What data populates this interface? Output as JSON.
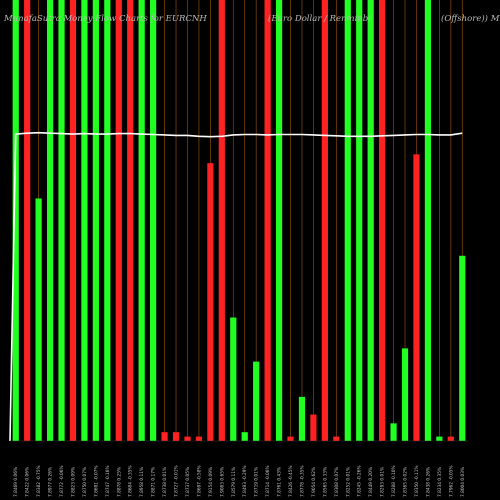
{
  "chart_data": {
    "type": "bar",
    "title_parts": [
      "MunafaSutra Money Flow Charts for EURCNH",
      "(Euro Dollar / Renminbi",
      "(Offshore)) MunafaSutra.com"
    ],
    "colors": {
      "background": "#000000",
      "up": "#22ff22",
      "down": "#ff2222",
      "line": "#ffffff",
      "separator": "#8a4a00"
    },
    "ylim": [
      0,
      100
    ],
    "categories": [
      "7.8469 0.06%",
      "7.8422 0.06%",
      "7.8382 -0.75%",
      "7.8977 0.26%",
      "7.8772 -0.06%",
      "7.8823 0.09%",
      "7.8750 0.07%",
      "7.8691 -0.07%",
      "7.8747 -0.16%",
      "7.8878 0.25%",
      "7.8684 -0.35%",
      "7.8958 0.11%",
      "7.8871 0.17%",
      "7.8738 0.01%",
      "7.8727 -0.01%",
      "7.8737 0.05%",
      "7.8697 -0.58%",
      "7.9154 0.09%",
      "7.9083 0.65%",
      "7.8579 0.11%",
      "7.8493 -0.29%",
      "7.8719 0.01%",
      "7.8714 -0.06%",
      "7.8761 0.43%",
      "7.8426 -0.45%",
      "7.8778 -0.35%",
      "7.9054 0.62%",
      "7.8565 0.33%",
      "7.8308 0.07%",
      "7.8252 0.01%",
      "7.8245 -0.26%",
      "7.8449 0.20%",
      "7.8293 0.01%",
      "7.8288 -0.10%",
      "7.8365 0.02%",
      "7.8350 -0.11%",
      "7.8438 0.26%",
      "7.8234 0.35%",
      "7.7962 -0.05%",
      "7.8004 0.03%"
    ],
    "series": [
      {
        "directions": [
          "up",
          "down",
          "up",
          "up",
          "up",
          "down",
          "up",
          "up",
          "up",
          "down",
          "down",
          "up",
          "up",
          "down",
          "down",
          "down",
          "down",
          "down",
          "down",
          "up",
          "up",
          "up",
          "down",
          "up",
          "down",
          "up",
          "down",
          "down",
          "down",
          "up",
          "up",
          "up",
          "down",
          "up",
          "up",
          "down",
          "up",
          "up",
          "down",
          "up"
        ],
        "values": [
          100,
          100,
          55,
          100,
          100,
          100,
          100,
          100,
          100,
          100,
          100,
          100,
          100,
          2,
          2,
          1,
          1,
          63,
          100,
          28,
          2,
          18,
          100,
          100,
          1,
          10,
          6,
          100,
          1,
          100,
          100,
          100,
          100,
          4,
          21,
          65,
          100,
          1,
          1,
          42
        ]
      }
    ],
    "price_line": [
      69.6,
      69.8,
      69.9,
      69.8,
      69.7,
      69.6,
      69.7,
      69.6,
      69.6,
      69.7,
      69.7,
      69.6,
      69.5,
      69.4,
      69.3,
      69.3,
      69.1,
      69.0,
      69.1,
      69.4,
      69.5,
      69.5,
      69.4,
      69.5,
      69.5,
      69.5,
      69.4,
      69.3,
      69.2,
      69.1,
      69.1,
      69.1,
      69.2,
      69.3,
      69.4,
      69.5,
      69.5,
      69.4,
      69.4,
      69.8
    ]
  }
}
